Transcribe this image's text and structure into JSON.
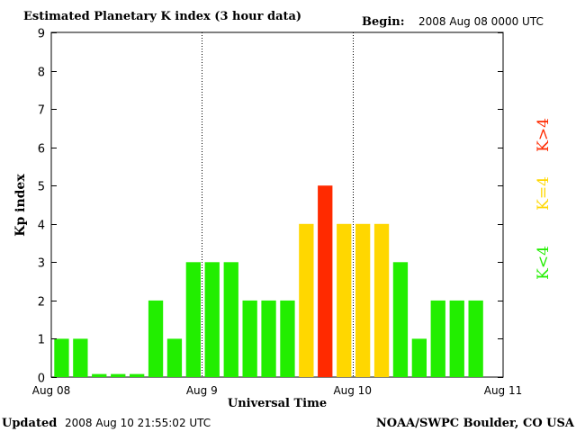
{
  "header": {
    "title": "Estimated Planetary K index (3 hour data)",
    "begin_label": "Begin:",
    "begin_value": "2008 Aug 08 0000 UTC"
  },
  "footer": {
    "updated_label": "Updated",
    "updated_value": "2008 Aug 10 21:55:02 UTC",
    "source": "NOAA/SWPC Boulder, CO USA"
  },
  "legend": [
    {
      "label": "K>4",
      "color": "#ff2a00"
    },
    {
      "label": "K=4",
      "color": "#ffd700"
    },
    {
      "label": "K<4",
      "color": "#22ee00"
    }
  ],
  "chart_data": {
    "type": "bar",
    "title": "Estimated Planetary K index (3 hour data)",
    "xlabel": "Universal Time",
    "ylabel": "Kp index",
    "ylim": [
      0,
      9
    ],
    "yticks": [
      0,
      1,
      2,
      3,
      4,
      5,
      6,
      7,
      8,
      9
    ],
    "xlim_days": [
      0,
      3
    ],
    "xticks": [
      {
        "day": 0,
        "label": "Aug 08"
      },
      {
        "day": 1,
        "label": "Aug 9"
      },
      {
        "day": 2,
        "label": "Aug 10"
      },
      {
        "day": 3,
        "label": "Aug 11"
      }
    ],
    "day_dividers": [
      1,
      2
    ],
    "bars_per_day": 8,
    "values": [
      1,
      1,
      0,
      0,
      0,
      2,
      1,
      3,
      3,
      3,
      2,
      2,
      2,
      4,
      5,
      4,
      4,
      4,
      3,
      1,
      2,
      2,
      2
    ],
    "colors": {
      "low": "#22ee00",
      "equal": "#ffd700",
      "high": "#ff2a00"
    }
  }
}
